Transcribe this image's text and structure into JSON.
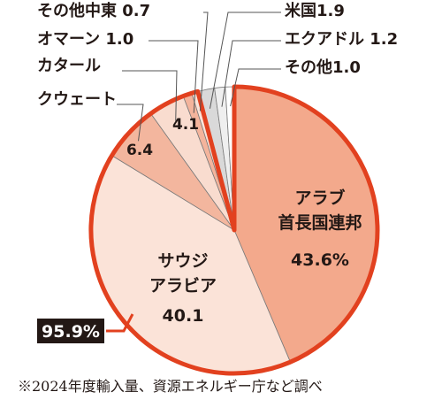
{
  "chart_data": {
    "type": "pie",
    "slices": [
      {
        "label_lines": [
          "アラブ",
          "首長国連邦"
        ],
        "value": 43.6,
        "value_text": "43.6%",
        "fill": "#f3a98c"
      },
      {
        "label_lines": [
          "サウジ",
          "アラビア"
        ],
        "value": 40.1,
        "value_text": "40.1",
        "fill": "#fbe3d8"
      },
      {
        "label_lines": [
          "クウェート"
        ],
        "value": 6.4,
        "value_text": "6.4",
        "fill": "#f3b69e"
      },
      {
        "label_lines": [
          "カタール"
        ],
        "value": 4.1,
        "value_text": "4.1",
        "fill": "#f9dccf"
      },
      {
        "label_lines": [
          "オマーン"
        ],
        "value": 1.0,
        "value_text": "1.0",
        "fill": "#f4b49c"
      },
      {
        "label_lines": [
          "その他中東"
        ],
        "value": 0.7,
        "value_text": "0.7",
        "fill": "#fbe3d8"
      },
      {
        "label_lines": [
          "米国"
        ],
        "value": 1.9,
        "value_text": "1.9",
        "fill": "#d9d9d9"
      },
      {
        "label_lines": [
          "エクアドル"
        ],
        "value": 1.2,
        "value_text": "1.2",
        "fill": "#efefef"
      },
      {
        "label_lines": [
          "その他"
        ],
        "value": 1.0,
        "value_text": "1.0",
        "fill": "#ffffff"
      }
    ],
    "highlight": {
      "text": "95.9%",
      "outline_color": "#e2411f"
    },
    "footnote": "※2024年度輸入量、資源エネルギー庁など調べ"
  }
}
